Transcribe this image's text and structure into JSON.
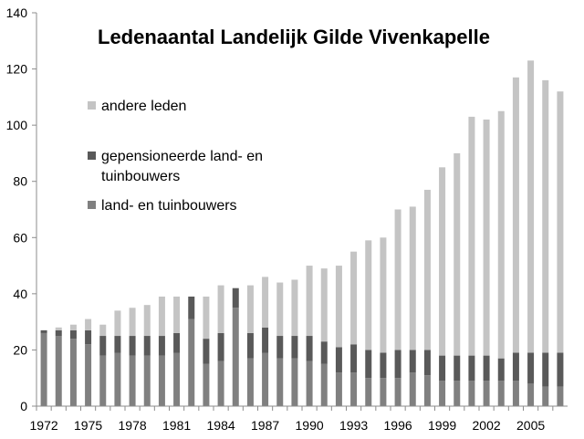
{
  "chart_data": {
    "type": "bar",
    "stacked": true,
    "title": "Ledenaantal Landelijk Gilde Vivenkapelle",
    "xlabel": "",
    "ylabel": "",
    "ylim": [
      0,
      140
    ],
    "yticks": [
      0,
      20,
      40,
      60,
      80,
      100,
      120,
      140
    ],
    "grid": false,
    "legend_position": "top-left",
    "categories": [
      "1972",
      "1973",
      "1974",
      "1975",
      "1976",
      "1977",
      "1978",
      "1979",
      "1980",
      "1981",
      "1982",
      "1983",
      "1984",
      "1985",
      "1986",
      "1987",
      "1988",
      "1989",
      "1990",
      "1991",
      "1992",
      "1993",
      "1994",
      "1995",
      "1996",
      "1997",
      "1998",
      "1999",
      "2000",
      "2001",
      "2002",
      "2003",
      "2004",
      "2005",
      "2006",
      "2007"
    ],
    "xtick_labels": [
      "1972",
      "1975",
      "1978",
      "1981",
      "1984",
      "1987",
      "1990",
      "1993",
      "1996",
      "1999",
      "2002",
      "2005"
    ],
    "series": [
      {
        "name": "land- en tuinbouwers",
        "color": "#808080",
        "values": [
          26,
          25,
          24,
          22,
          18,
          19,
          18,
          18,
          18,
          19,
          31,
          15,
          16,
          35,
          17,
          19,
          17,
          17,
          16,
          15,
          12,
          12,
          10,
          10,
          10,
          12,
          11,
          9,
          9,
          9,
          9,
          9,
          9,
          8,
          7,
          7
        ]
      },
      {
        "name": "gepensioneerde land- en tuinbouwers",
        "color": "#595959",
        "values": [
          1,
          2,
          3,
          5,
          7,
          6,
          7,
          7,
          7,
          7,
          8,
          9,
          10,
          7,
          9,
          9,
          8,
          8,
          9,
          8,
          9,
          10,
          10,
          9,
          10,
          8,
          9,
          9,
          9,
          9,
          9,
          8,
          10,
          11,
          12,
          12
        ]
      },
      {
        "name": "andere leden",
        "color": "#c4c4c4",
        "values": [
          0,
          1,
          2,
          4,
          4,
          9,
          10,
          11,
          14,
          13,
          0,
          15,
          17,
          0,
          17,
          18,
          19,
          20,
          25,
          26,
          29,
          33,
          39,
          41,
          50,
          51,
          57,
          67,
          72,
          85,
          84,
          88,
          98,
          104,
          97,
          93
        ]
      }
    ],
    "legend": [
      {
        "label": "andere leden",
        "series_index": 2
      },
      {
        "label": "gepensioneerde land- en tuinbouwers",
        "series_index": 1
      },
      {
        "label": "land- en tuinbouwers",
        "series_index": 0
      }
    ]
  }
}
